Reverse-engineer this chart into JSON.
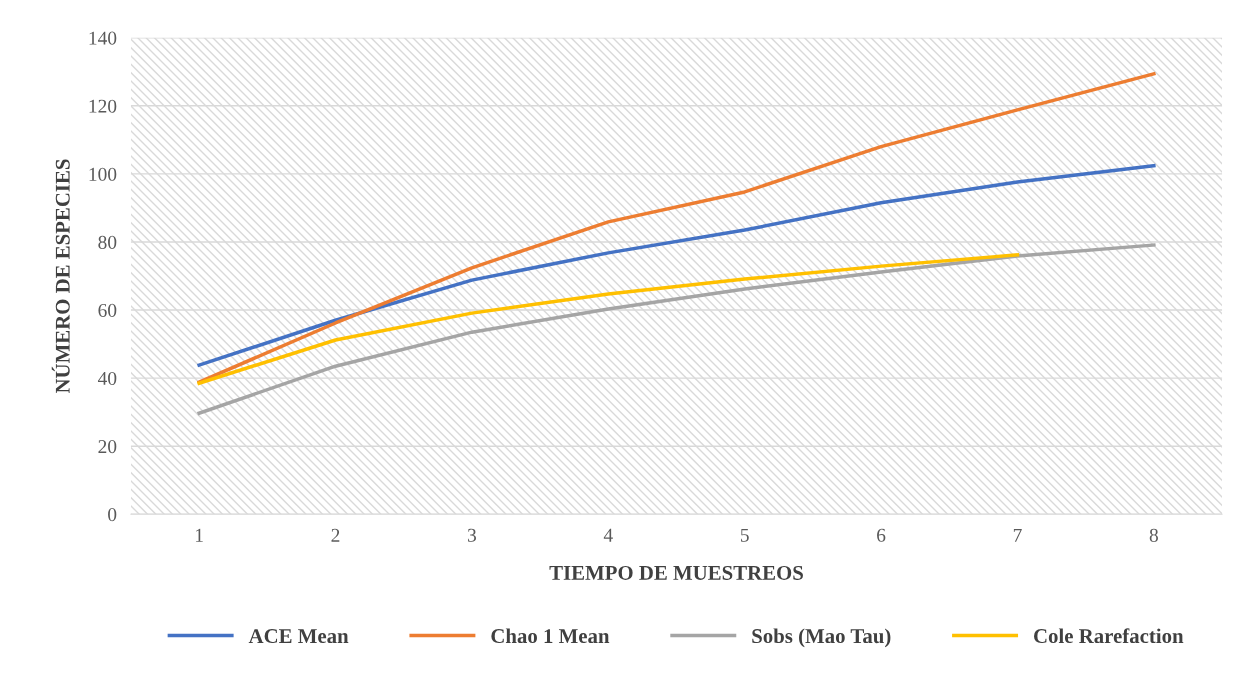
{
  "chart_data": {
    "type": "line",
    "xlabel": "TIEMPO DE MUESTREOS",
    "ylabel": "NÚMERO DE ESPECIES",
    "categories": [
      "1",
      "2",
      "3",
      "4",
      "5",
      "6",
      "7",
      "8"
    ],
    "series": [
      {
        "name": "ACE Mean",
        "color": "#4472c4",
        "values": [
          43.8,
          57,
          68.8,
          76.8,
          83.5,
          91.5,
          97.6,
          102.4
        ]
      },
      {
        "name": "Chao 1 Mean",
        "color": "#ed7d31",
        "values": [
          38.8,
          56.2,
          72.4,
          85.9,
          94.7,
          108,
          118.8,
          129.4
        ]
      },
      {
        "name": "Sobs (Mao Tau)",
        "color": "#a5a5a5",
        "values": [
          29.7,
          43.5,
          53.5,
          60.3,
          66.2,
          71.2,
          75.9,
          79.1
        ]
      },
      {
        "name": "Cole Rarefaction",
        "color": "#ffc000",
        "values": [
          38.5,
          51.2,
          59.1,
          64.7,
          69.1,
          72.9,
          76.2,
          null
        ]
      }
    ],
    "ylim": [
      0,
      140
    ],
    "yticks": [
      0,
      20,
      40,
      60,
      80,
      100,
      120,
      140
    ],
    "grid": "y",
    "legend": "bottom",
    "marker": "none",
    "line_style": "solid"
  }
}
